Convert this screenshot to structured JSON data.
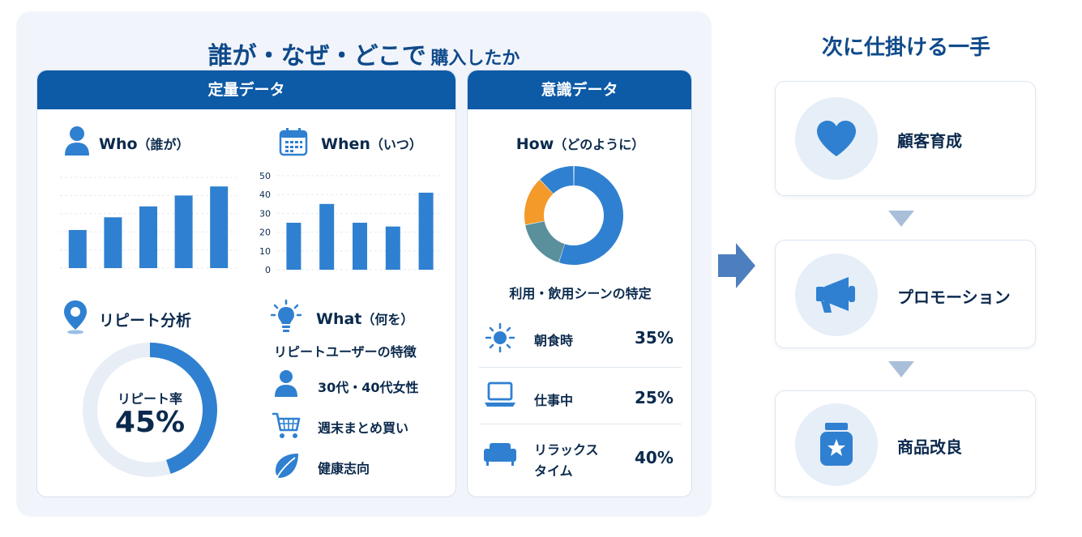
{
  "title": {
    "main": "誰が・なぜ・どこで",
    "sub": "購入したか"
  },
  "quant": {
    "header": "定量データ",
    "who": {
      "title": "Who",
      "sub": "（誰が）",
      "values": [
        21,
        28,
        34,
        40,
        45
      ],
      "ymax": 50
    },
    "when": {
      "title": "When",
      "sub": "（いつ）",
      "ticks": [
        "50",
        "40",
        "30",
        "20",
        "10",
        "0"
      ],
      "values": [
        25,
        35,
        25,
        23,
        41
      ],
      "ymax": 50
    },
    "repeat": {
      "title": "リピート分析",
      "rate_label": "リピート率",
      "rate_value": "45%",
      "rate": 45
    },
    "what": {
      "title": "What",
      "sub": "（何を）",
      "subtitle": "リピートユーザーの特徴",
      "items": [
        "30代・40代女性",
        "週末まとめ買い",
        "健康志向"
      ]
    }
  },
  "awareness": {
    "header": "意識データ",
    "how": {
      "title": "How",
      "sub": "（どのように）"
    },
    "scene_label": "利用・飲用シーンの特定",
    "scenes": [
      {
        "label": "朝食時",
        "value": "35%"
      },
      {
        "label": "仕事中",
        "value": "25%"
      },
      {
        "label": "リラックス",
        "label2": "タイム",
        "value": "40%"
      }
    ]
  },
  "chart_data": [
    {
      "type": "bar",
      "title": "Who（誰が）",
      "values": [
        21,
        28,
        34,
        40,
        45
      ],
      "ylim": [
        0,
        50
      ]
    },
    {
      "type": "bar",
      "title": "When（いつ）",
      "values": [
        25,
        35,
        25,
        23,
        41
      ],
      "ylim": [
        0,
        50
      ],
      "yticks": [
        0,
        10,
        20,
        30,
        40,
        50
      ]
    },
    {
      "type": "pie",
      "title": "How（どのように）",
      "values": [
        55,
        17,
        16,
        12
      ],
      "colors": [
        "#2f80d0",
        "#5a8f9c",
        "#f39a2b",
        "#2f80d0"
      ]
    },
    {
      "type": "pie",
      "title": "リピート率",
      "values": [
        45,
        55
      ]
    }
  ],
  "next": {
    "title": "次に仕掛ける一手",
    "steps": [
      {
        "label": "顧客育成",
        "icon": "heart-icon"
      },
      {
        "label": "プロモーション",
        "icon": "megaphone-icon"
      },
      {
        "label": "商品改良",
        "icon": "jar-star-icon"
      }
    ]
  },
  "colors": {
    "primary": "#0d5aa6",
    "bar": "#2f80d0",
    "orange": "#f39a2b",
    "teal": "#5a8f9c",
    "light": "#e6eef8"
  }
}
